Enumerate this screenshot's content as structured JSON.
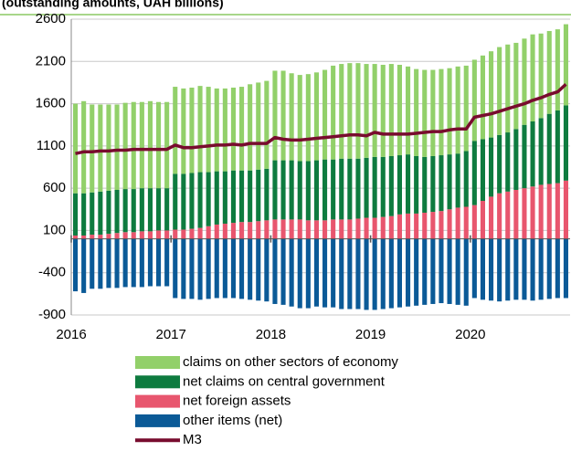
{
  "chart_data": {
    "type": "bar",
    "title": "(outstanding amounts, UAH billions)",
    "stacked": true,
    "categories": [
      null,
      null,
      null,
      null,
      null,
      null,
      null,
      null,
      null,
      null,
      null,
      null,
      null,
      null,
      null,
      null,
      null,
      null,
      null,
      null,
      null,
      null,
      null,
      null,
      null,
      null,
      null,
      null,
      null,
      null,
      null,
      null,
      null,
      null,
      null,
      null,
      null,
      null,
      null,
      null,
      null,
      null,
      null,
      null,
      null,
      null,
      null,
      null,
      null,
      null,
      null,
      null,
      null,
      null,
      null,
      null,
      null,
      null,
      null,
      null
    ],
    "xlim": [
      2016,
      2021
    ],
    "xticks": [
      2016,
      2017,
      2018,
      2019,
      2020
    ],
    "ylim": [
      -900,
      2600
    ],
    "yticks": [
      -900,
      -400,
      100,
      600,
      1100,
      1600,
      2100,
      2600
    ],
    "grid": true,
    "legend": "bottom",
    "series": [
      {
        "name": "claims on other sectors of economy",
        "color": "#92d06a",
        "values": [
          1060,
          1090,
          1040,
          1030,
          1020,
          1010,
          1020,
          1030,
          1020,
          1030,
          1020,
          1020,
          1030,
          1010,
          1010,
          1020,
          1010,
          980,
          980,
          980,
          990,
          1020,
          1030,
          1040,
          1060,
          1060,
          1030,
          1020,
          1030,
          1040,
          1060,
          1110,
          1120,
          1130,
          1130,
          1110,
          1100,
          1090,
          1090,
          1070,
          1040,
          1030,
          1030,
          1020,
          1020,
          1020,
          1030,
          1010,
          960,
          990,
          1020,
          1040,
          1040,
          1020,
          1020,
          1030,
          1000,
          980,
          960,
          960
        ]
      },
      {
        "name": "net claims on central government",
        "color": "#0e7b3f",
        "values": [
          500,
          500,
          500,
          510,
          510,
          510,
          510,
          510,
          510,
          510,
          500,
          500,
          660,
          660,
          660,
          660,
          640,
          630,
          620,
          620,
          610,
          610,
          610,
          610,
          700,
          700,
          700,
          690,
          700,
          710,
          720,
          710,
          720,
          720,
          710,
          710,
          720,
          710,
          710,
          700,
          700,
          680,
          660,
          660,
          660,
          650,
          640,
          660,
          760,
          730,
          700,
          690,
          700,
          720,
          750,
          770,
          790,
          830,
          860,
          890
        ]
      },
      {
        "name": "net foreign assets",
        "color": "#e8566e",
        "values": [
          40,
          40,
          50,
          50,
          60,
          70,
          80,
          80,
          90,
          90,
          100,
          100,
          110,
          110,
          120,
          130,
          150,
          170,
          180,
          190,
          200,
          200,
          210,
          220,
          230,
          230,
          230,
          230,
          220,
          220,
          220,
          230,
          230,
          230,
          240,
          250,
          250,
          260,
          270,
          290,
          300,
          300,
          310,
          320,
          330,
          350,
          370,
          380,
          400,
          450,
          500,
          540,
          560,
          580,
          600,
          620,
          640,
          650,
          660,
          690
        ]
      },
      {
        "name": "other items (net)",
        "color": "#0b5a97",
        "values": [
          -620,
          -640,
          -590,
          -590,
          -580,
          -580,
          -570,
          -570,
          -570,
          -560,
          -560,
          -560,
          -700,
          -710,
          -710,
          -720,
          -710,
          -700,
          -700,
          -700,
          -710,
          -720,
          -730,
          -740,
          -770,
          -780,
          -800,
          -820,
          -820,
          -800,
          -810,
          -810,
          -830,
          -830,
          -830,
          -840,
          -840,
          -830,
          -820,
          -810,
          -800,
          -790,
          -780,
          -770,
          -760,
          -770,
          -780,
          -790,
          -700,
          -720,
          -730,
          -740,
          -730,
          -720,
          -720,
          -730,
          -720,
          -710,
          -700,
          -700
        ]
      },
      {
        "name": "M3",
        "color": "#780c2e",
        "type": "line",
        "values": [
          1010,
          1030,
          1030,
          1040,
          1040,
          1050,
          1050,
          1060,
          1060,
          1060,
          1060,
          1060,
          1110,
          1080,
          1080,
          1090,
          1100,
          1110,
          1110,
          1120,
          1110,
          1130,
          1130,
          1130,
          1200,
          1180,
          1170,
          1170,
          1180,
          1190,
          1200,
          1210,
          1220,
          1230,
          1230,
          1220,
          1260,
          1240,
          1240,
          1240,
          1240,
          1250,
          1260,
          1270,
          1270,
          1290,
          1300,
          1300,
          1440,
          1460,
          1480,
          1510,
          1540,
          1570,
          1600,
          1640,
          1670,
          1710,
          1740,
          1830
        ]
      }
    ]
  }
}
